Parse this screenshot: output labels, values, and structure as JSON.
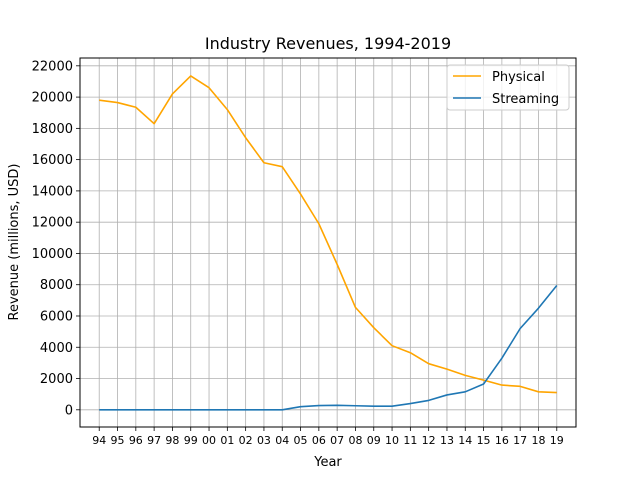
{
  "chart_data": {
    "type": "line",
    "title": "Industry Revenues, 1994-2019",
    "xlabel": "Year",
    "ylabel": "Revenue (millions, USD)",
    "categories": [
      "94",
      "95",
      "96",
      "97",
      "98",
      "99",
      "00",
      "01",
      "02",
      "03",
      "04",
      "05",
      "06",
      "07",
      "08",
      "09",
      "10",
      "11",
      "12",
      "13",
      "14",
      "15",
      "16",
      "17",
      "18",
      "19"
    ],
    "ylim": [
      -1100,
      22500
    ],
    "yticks": [
      0,
      2000,
      4000,
      6000,
      8000,
      10000,
      12000,
      14000,
      16000,
      18000,
      20000,
      22000
    ],
    "grid": true,
    "legend_position": "top-right",
    "series": [
      {
        "name": "Physical",
        "color": "#ffa500",
        "values": [
          19800,
          19650,
          19350,
          18300,
          20200,
          21350,
          20600,
          19200,
          17400,
          15800,
          15550,
          13800,
          11900,
          9300,
          6550,
          5250,
          4100,
          3650,
          2950,
          2600,
          2200,
          1900,
          1580,
          1500,
          1150,
          1100
        ]
      },
      {
        "name": "Streaming",
        "color": "#1f77b4",
        "values": [
          0,
          0,
          0,
          0,
          0,
          0,
          0,
          0,
          0,
          0,
          0,
          200,
          270,
          290,
          260,
          230,
          230,
          400,
          600,
          950,
          1150,
          1650,
          3300,
          5200,
          6500,
          7950
        ]
      }
    ]
  }
}
